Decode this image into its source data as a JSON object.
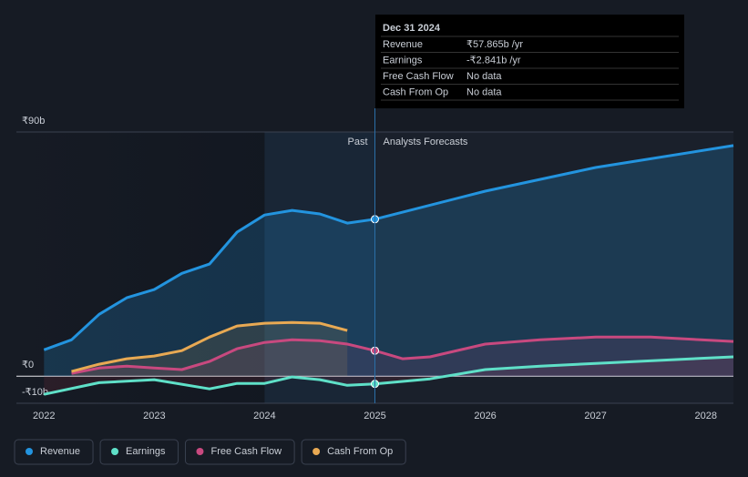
{
  "chart_data": {
    "type": "line",
    "xlim": [
      2021.75,
      2028.25
    ],
    "xticks": [
      2022,
      2023,
      2024,
      2025,
      2026,
      2027,
      2028
    ],
    "ylim": [
      -10,
      90
    ],
    "yticks": [
      {
        "value": 90,
        "label": "₹90b"
      },
      {
        "value": 0,
        "label": "₹0"
      },
      {
        "value": -10,
        "label": "-₹10b"
      }
    ],
    "grid": true,
    "past_label": "Past",
    "forecast_label": "Analysts Forecasts",
    "forecast_start": 2025,
    "highlight_start": 2024,
    "series": [
      {
        "name": "Revenue",
        "color": "#2394df",
        "x": [
          2022,
          2022.25,
          2022.5,
          2022.75,
          2023,
          2023.25,
          2023.5,
          2023.75,
          2024,
          2024.25,
          2024.5,
          2024.75,
          2025,
          2026,
          2027,
          2028.25
        ],
        "values": [
          9.7,
          13.4,
          22.8,
          28.9,
          31.9,
          37.9,
          41.3,
          53.1,
          59.4,
          61.1,
          59.8,
          56.4,
          57.865,
          68.2,
          76.9,
          85.0
        ]
      },
      {
        "name": "Earnings",
        "color": "#5fe0c8",
        "x": [
          2022,
          2022.5,
          2023,
          2023.5,
          2023.75,
          2024,
          2024.25,
          2024.5,
          2024.75,
          2025,
          2025.5,
          2026,
          2026.5,
          2027,
          2028.25
        ],
        "values": [
          -6.7,
          -2.4,
          -1.3,
          -4.7,
          -2.7,
          -2.7,
          -0.3,
          -1.3,
          -3.4,
          -2.841,
          -1.0,
          2.4,
          3.7,
          4.7,
          7.1
        ]
      },
      {
        "name": "Free Cash Flow",
        "color": "#c8497f",
        "x": [
          2022.25,
          2022.5,
          2022.75,
          2023,
          2023.25,
          2023.5,
          2023.75,
          2024,
          2024.25,
          2024.5,
          2024.75,
          2025,
          2025.25,
          2025.5,
          2026,
          2026.5,
          2027,
          2027.5,
          2028.25
        ],
        "values": [
          1.0,
          3.0,
          3.7,
          3.0,
          2.4,
          5.4,
          10.1,
          12.4,
          13.4,
          13.1,
          11.8,
          9.4,
          6.4,
          7.1,
          11.8,
          13.4,
          14.4,
          14.4,
          12.8
        ]
      },
      {
        "name": "Cash From Op",
        "color": "#e8a953",
        "x": [
          2022.25,
          2022.5,
          2022.75,
          2023,
          2023.25,
          2023.5,
          2023.75,
          2024,
          2024.25,
          2024.5,
          2024.75
        ],
        "values": [
          1.7,
          4.4,
          6.4,
          7.4,
          9.4,
          14.4,
          18.5,
          19.5,
          19.8,
          19.5,
          16.8
        ]
      }
    ],
    "tooltip": {
      "date": "Dec 31 2024",
      "rows": [
        {
          "label": "Revenue",
          "value": "₹57.865b",
          "unit": "/yr"
        },
        {
          "label": "Earnings",
          "value": "-₹2.841b",
          "unit": "/yr"
        },
        {
          "label": "Free Cash Flow",
          "value": "No data"
        },
        {
          "label": "Cash From Op",
          "value": "No data"
        }
      ]
    }
  }
}
